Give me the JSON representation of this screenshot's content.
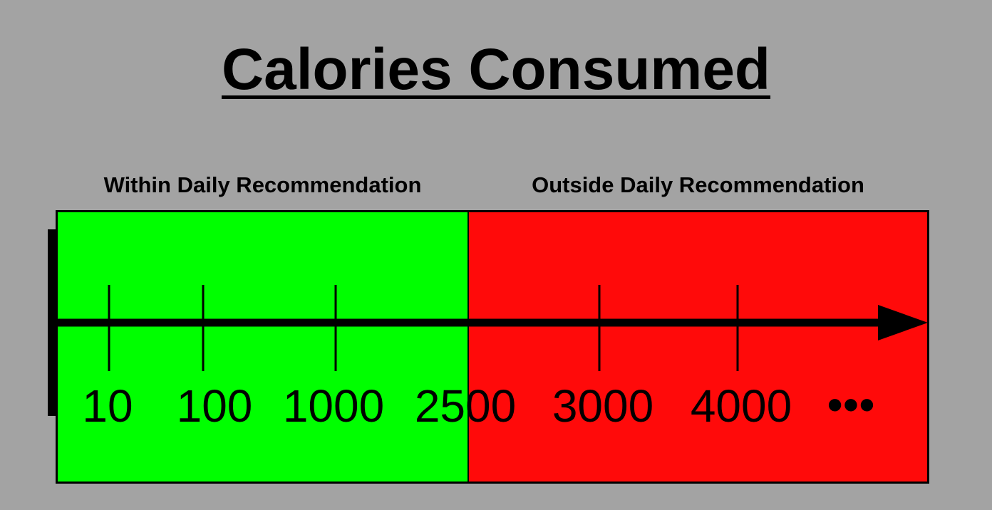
{
  "title": "Calories Consumed",
  "regions": {
    "within": {
      "label": "Within Daily Recommendation",
      "color": "#00ff00",
      "range": [
        0,
        2500
      ]
    },
    "outside": {
      "label": "Outside Daily Recommendation",
      "color": "#ff0a0a",
      "range": [
        2500,
        null
      ]
    }
  },
  "axis": {
    "ticks": [
      10,
      100,
      1000,
      2500,
      3000,
      4000
    ],
    "tick_labels": [
      "10",
      "100",
      "1000",
      "2500",
      "3000",
      "4000"
    ],
    "continuation": "•••",
    "line_color": "#000000"
  }
}
